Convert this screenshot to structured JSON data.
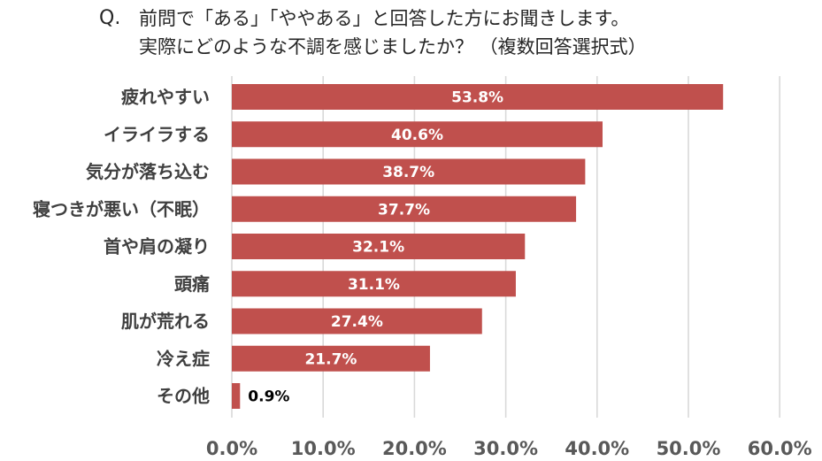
{
  "title": {
    "prefix": "Q.",
    "line1": "前問で「ある」「ややある」と回答した方にお聞きします。",
    "line2": "実際にどのような不調を感じましたか？ （複数回答選択式）"
  },
  "colors": {
    "bar": "#c0504d",
    "grid": "#d9d9d9",
    "label_inside": "#ffffff",
    "label_outside": "#000000",
    "category_text": "#3f3f3f",
    "tick_text": "#595959"
  },
  "chart_data": {
    "type": "bar",
    "orientation": "horizontal",
    "categories": [
      "疲れやすい",
      "イライラする",
      "気分が落ち込む",
      "寝つきが悪い（不眠）",
      "首や肩の凝り",
      "頭痛",
      "肌が荒れる",
      "冷え症",
      "その他"
    ],
    "values": [
      53.8,
      40.6,
      38.7,
      37.7,
      32.1,
      31.1,
      27.4,
      21.7,
      0.9
    ],
    "value_labels": [
      "53.8%",
      "40.6%",
      "38.7%",
      "37.7%",
      "32.1%",
      "31.1%",
      "27.4%",
      "21.7%",
      "0.9%"
    ],
    "xlim": [
      0,
      60
    ],
    "xticks": [
      0,
      10,
      20,
      30,
      40,
      50,
      60
    ],
    "xtick_labels": [
      "0.0%",
      "10.0%",
      "20.0%",
      "30.0%",
      "40.0%",
      "50.0%",
      "60.0%"
    ],
    "grid": true,
    "legend": "none"
  }
}
